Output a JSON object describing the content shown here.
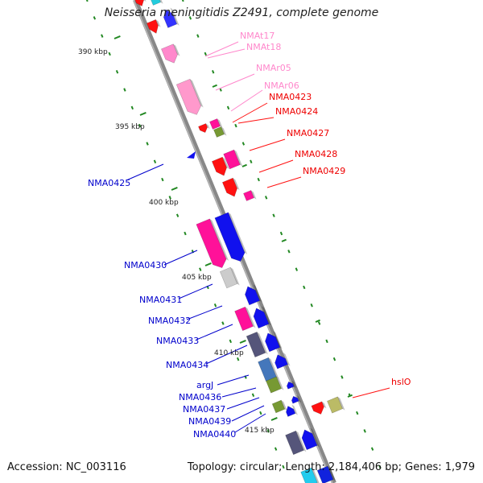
{
  "title": "Neisseria meningitidis Z2491, complete genome",
  "accession": "Accession: NC_003116",
  "topology": "Topology: circular; Length: 2,184,406 bp; Genes: 1,979",
  "colors": {
    "trna": "#ff88cc",
    "rrna": "#ff99cc",
    "red_gene": "#ff1111",
    "blue_gene": "#1111ee",
    "pink_gene": "#ff1199",
    "grey_gene": "#cccccc",
    "slate_gene": "#55557a",
    "steel_gene": "#4477bb",
    "olive_gene": "#779933",
    "khaki_gene": "#bbbb66",
    "axis": "#888888",
    "dots": "#228822"
  },
  "kbp_labels": [
    "390 kbp",
    "395 kbp",
    "400 kbp",
    "405 kbp",
    "410 kbp",
    "415 kbp"
  ],
  "gene_labels": [
    {
      "text": "NMAt17",
      "color": "#ff88cc"
    },
    {
      "text": "NMAt18",
      "color": "#ff88cc"
    },
    {
      "text": "NMAr05",
      "color": "#ff88cc"
    },
    {
      "text": "NMAr06",
      "color": "#ff88cc"
    },
    {
      "text": "NMA0423",
      "color": "#ee0000"
    },
    {
      "text": "NMA0424",
      "color": "#ee0000"
    },
    {
      "text": "NMA0427",
      "color": "#ee0000"
    },
    {
      "text": "NMA0428",
      "color": "#ee0000"
    },
    {
      "text": "NMA0429",
      "color": "#ee0000"
    },
    {
      "text": "NMA0425",
      "color": "#0000cc"
    },
    {
      "text": "NMA0430",
      "color": "#0000cc"
    },
    {
      "text": "NMA0431",
      "color": "#0000cc"
    },
    {
      "text": "NMA0432",
      "color": "#0000cc"
    },
    {
      "text": "NMA0433",
      "color": "#0000cc"
    },
    {
      "text": "NMA0434",
      "color": "#0000cc"
    },
    {
      "text": "argJ",
      "color": "#0000cc"
    },
    {
      "text": "NMA0436",
      "color": "#0000cc"
    },
    {
      "text": "NMA0437",
      "color": "#0000cc"
    },
    {
      "text": "NMA0439",
      "color": "#0000cc"
    },
    {
      "text": "NMA0440",
      "color": "#0000cc"
    },
    {
      "text": "hslO",
      "color": "#ee0000"
    }
  ]
}
